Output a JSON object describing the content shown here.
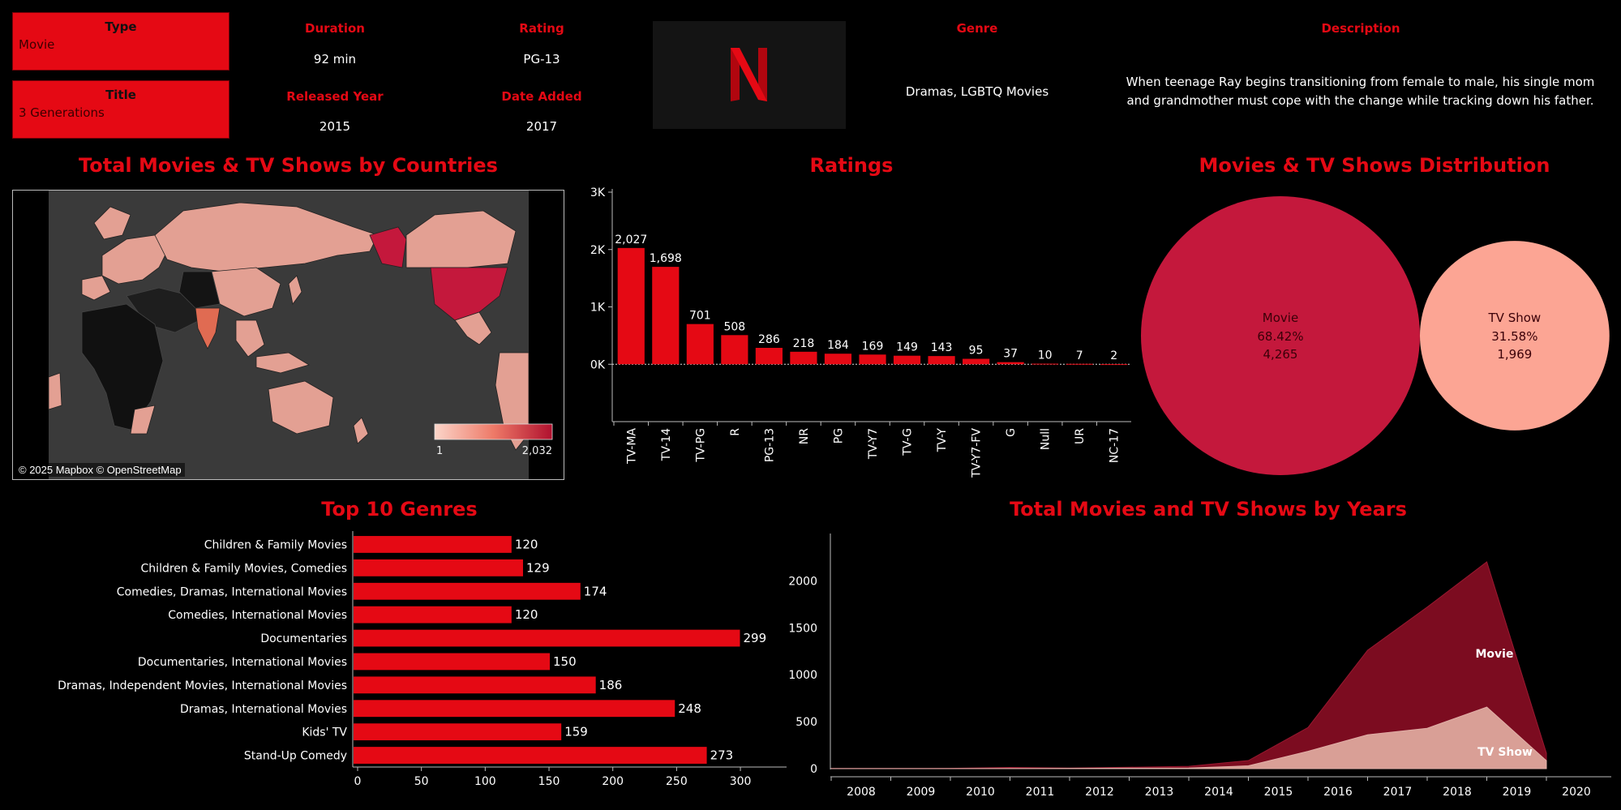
{
  "details": {
    "type_label": "Type",
    "type_value": "Movie",
    "title_label": "Title",
    "title_value": "3 Generations",
    "duration_label": "Duration",
    "duration_value": "92 min",
    "rating_label": "Rating",
    "rating_value": "PG-13",
    "released_label": "Released Year",
    "released_value": "2015",
    "added_label": "Date Added",
    "added_value": "2017",
    "genre_label": "Genre",
    "genre_value": "Dramas, LGBTQ Movies",
    "description_label": "Description",
    "description_value": "When teenage Ray begins transitioning from female to male, his single mom and grandmother must cope with the change while tracking down his father.",
    "logo_letter": "N",
    "colors": {
      "accent": "#e50914",
      "movie": "#c4183c",
      "tvshow": "#fca594"
    }
  },
  "map": {
    "title": "Total Movies & TV Shows by Countries",
    "legend_min": "1",
    "legend_max": "2,032",
    "credit": "© 2025 Mapbox © OpenStreetMap"
  },
  "chart_data": [
    {
      "type": "bar",
      "title": "Ratings",
      "categories": [
        "TV-MA",
        "TV-14",
        "TV-PG",
        "R",
        "PG-13",
        "NR",
        "PG",
        "TV-Y7",
        "TV-G",
        "TV-Y",
        "TV-Y7-FV",
        "G",
        "Null",
        "UR",
        "NC-17"
      ],
      "values": [
        2027,
        1698,
        701,
        508,
        286,
        218,
        184,
        169,
        149,
        143,
        95,
        37,
        10,
        7,
        2
      ],
      "value_labels": [
        "2,027",
        "1,698",
        "701",
        "508",
        "286",
        "218",
        "184",
        "169",
        "149",
        "143",
        "95",
        "37",
        "10",
        "7",
        "2"
      ],
      "ytick_labels": [
        "0K",
        "1K",
        "2K",
        "3K"
      ],
      "ylim": [
        -1000,
        3000
      ],
      "color": "#e50914"
    },
    {
      "type": "pie",
      "title": "Movies & TV Shows Distribution",
      "slices": [
        {
          "name": "Movie",
          "percent": "68.42%",
          "value": 4265,
          "value_label": "4,265",
          "color": "#c4183c"
        },
        {
          "name": "TV Show",
          "percent": "31.58%",
          "value": 1969,
          "value_label": "1,969",
          "color": "#fca594"
        }
      ]
    },
    {
      "type": "bar",
      "title": "Top 10 Genres",
      "orientation": "horizontal",
      "categories": [
        "Children & Family Movies",
        "Children & Family Movies, Comedies",
        "Comedies, Dramas, International Movies",
        "Comedies, International Movies",
        "Documentaries",
        "Documentaries, International Movies",
        "Dramas, Independent Movies, International Movies",
        "Dramas, International Movies",
        "Kids' TV",
        "Stand-Up Comedy"
      ],
      "values": [
        120,
        129,
        174,
        120,
        299,
        150,
        186,
        248,
        159,
        273
      ],
      "xlim": [
        0,
        340
      ],
      "xticks": [
        0,
        50,
        100,
        150,
        200,
        250,
        300
      ],
      "color": "#e50914"
    },
    {
      "type": "area",
      "title": "Total Movies and TV Shows by Years",
      "x": [
        2008,
        2009,
        2010,
        2011,
        2012,
        2013,
        2014,
        2015,
        2016,
        2017,
        2018,
        2019,
        2020
      ],
      "series": [
        {
          "name": "TV Show",
          "values": [
            1,
            1,
            1,
            2,
            3,
            5,
            6,
            30,
            185,
            361,
            430,
            656,
            85
          ],
          "color": "#d99f96"
        },
        {
          "name": "Movie",
          "values": [
            1,
            1,
            2,
            11,
            3,
            10,
            19,
            56,
            253,
            900,
            1290,
            1546,
            80
          ],
          "color": "#7c0c20"
        }
      ],
      "stacked": true,
      "ylim": [
        0,
        2400
      ],
      "yticks": [
        0,
        500,
        1000,
        1500,
        2000
      ]
    }
  ]
}
